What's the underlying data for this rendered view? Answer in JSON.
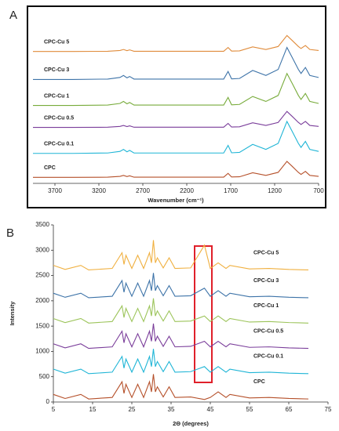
{
  "chart_data": [
    {
      "type": "line",
      "panel": "A",
      "x_label": "Wavenumber (cm⁻¹)",
      "x": [
        3950,
        3500,
        3100,
        2960,
        2920,
        2880,
        2850,
        2800,
        1780,
        1730,
        1690,
        1600,
        1450,
        1300,
        1160,
        1060,
        1000,
        930,
        900,
        850,
        800,
        700
      ],
      "xlim": [
        3950,
        700
      ],
      "xticks": [
        3700,
        3200,
        2700,
        2200,
        1700,
        1200,
        700
      ],
      "ylim": [
        0,
        8
      ],
      "series": [
        {
          "name": "CPC",
          "color": "#b5502a",
          "values": [
            0.3,
            0.3,
            0.31,
            0.35,
            0.4,
            0.34,
            0.38,
            0.31,
            0.31,
            0.5,
            0.32,
            0.33,
            0.53,
            0.4,
            0.55,
            1.1,
            0.85,
            0.55,
            0.45,
            0.6,
            0.4,
            0.35
          ]
        },
        {
          "name": "CPC-Cu 0.1",
          "color": "#1fb5d6",
          "values": [
            1.5,
            1.5,
            1.52,
            1.6,
            1.7,
            1.58,
            1.65,
            1.52,
            1.52,
            1.9,
            1.53,
            1.55,
            1.95,
            1.7,
            2.0,
            3.1,
            2.6,
            2.0,
            1.8,
            2.1,
            1.7,
            1.6
          ]
        },
        {
          "name": "CPC-Cu 0.5",
          "color": "#7a3d9a",
          "values": [
            2.8,
            2.8,
            2.81,
            2.85,
            2.9,
            2.84,
            2.88,
            2.81,
            2.81,
            3.0,
            2.82,
            2.83,
            3.03,
            2.9,
            3.05,
            3.6,
            3.35,
            3.05,
            2.95,
            3.1,
            2.9,
            2.85
          ]
        },
        {
          "name": "CPC-Cu 1",
          "color": "#77ab3a",
          "values": [
            3.9,
            3.9,
            3.92,
            4.0,
            4.1,
            3.98,
            4.05,
            3.92,
            3.92,
            4.3,
            3.93,
            3.95,
            4.35,
            4.1,
            4.4,
            5.5,
            5.0,
            4.4,
            4.2,
            4.5,
            4.1,
            4.0
          ]
        },
        {
          "name": "CPC-Cu 3",
          "color": "#3d73a8",
          "values": [
            5.2,
            5.2,
            5.22,
            5.3,
            5.4,
            5.28,
            5.35,
            5.22,
            5.22,
            5.6,
            5.23,
            5.25,
            5.65,
            5.4,
            5.7,
            6.8,
            6.3,
            5.7,
            5.5,
            5.8,
            5.4,
            5.3
          ]
        },
        {
          "name": "CPC-Cu 5",
          "color": "#e08b3a",
          "values": [
            6.6,
            6.6,
            6.61,
            6.65,
            6.7,
            6.64,
            6.68,
            6.61,
            6.61,
            6.8,
            6.62,
            6.63,
            6.83,
            6.7,
            6.85,
            7.4,
            7.15,
            6.85,
            6.75,
            6.9,
            6.7,
            6.65
          ]
        }
      ]
    },
    {
      "type": "line",
      "panel": "B",
      "x_label": "2Θ (degrees)",
      "y_label": "Intensity",
      "x": [
        5,
        8,
        12,
        14,
        20,
        22.5,
        23,
        23.5,
        25,
        26.5,
        28,
        29.5,
        30,
        30.5,
        31,
        31.5,
        33,
        34.5,
        36,
        40,
        43.5,
        45,
        47,
        49,
        50,
        55,
        60,
        65,
        70
      ],
      "xlim": [
        5,
        75
      ],
      "xticks": [
        5,
        15,
        25,
        35,
        45,
        55,
        65,
        75
      ],
      "ylim": [
        0,
        3500
      ],
      "yticks": [
        0,
        500,
        1000,
        1500,
        2000,
        2500,
        3000,
        3500
      ],
      "series": [
        {
          "name": "CPC",
          "color": "#b5502a",
          "values": [
            150,
            70,
            150,
            60,
            90,
            400,
            170,
            350,
            90,
            350,
            90,
            400,
            200,
            550,
            200,
            300,
            100,
            300,
            90,
            100,
            50,
            90,
            200,
            90,
            150,
            80,
            90,
            70,
            60
          ]
        },
        {
          "name": "CPC-Cu 0.1",
          "color": "#1fb5d6",
          "values": [
            650,
            570,
            650,
            560,
            590,
            900,
            670,
            850,
            590,
            850,
            590,
            900,
            700,
            1050,
            700,
            800,
            600,
            800,
            590,
            600,
            700,
            590,
            700,
            590,
            650,
            580,
            590,
            570,
            560
          ]
        },
        {
          "name": "CPC-Cu 0.5",
          "color": "#7a3d9a",
          "values": [
            1150,
            1070,
            1150,
            1060,
            1090,
            1400,
            1170,
            1350,
            1090,
            1350,
            1090,
            1400,
            1200,
            1550,
            1200,
            1300,
            1100,
            1300,
            1090,
            1100,
            1200,
            1090,
            1200,
            1090,
            1150,
            1080,
            1090,
            1070,
            1060
          ]
        },
        {
          "name": "CPC-Cu 1",
          "color": "#9cc45a",
          "values": [
            1650,
            1570,
            1650,
            1560,
            1590,
            1900,
            1670,
            1850,
            1590,
            1850,
            1590,
            1900,
            1700,
            2050,
            1700,
            1800,
            1600,
            1800,
            1590,
            1600,
            1700,
            1590,
            1700,
            1590,
            1650,
            1580,
            1590,
            1570,
            1560
          ]
        },
        {
          "name": "CPC-Cu 3",
          "color": "#3d73a8",
          "values": [
            2150,
            2070,
            2150,
            2060,
            2090,
            2400,
            2170,
            2350,
            2090,
            2350,
            2090,
            2400,
            2200,
            2550,
            2200,
            2300,
            2100,
            2300,
            2090,
            2100,
            2250,
            2090,
            2200,
            2090,
            2150,
            2080,
            2090,
            2070,
            2060
          ]
        },
        {
          "name": "CPC-Cu 5",
          "color": "#f0b040",
          "values": [
            2700,
            2620,
            2700,
            2610,
            2640,
            2950,
            2720,
            2900,
            2640,
            2900,
            2640,
            2950,
            2750,
            3200,
            2750,
            2850,
            2650,
            2850,
            2640,
            2650,
            3100,
            2640,
            2750,
            2640,
            2700,
            2630,
            2640,
            2620,
            2610
          ]
        }
      ]
    }
  ]
}
